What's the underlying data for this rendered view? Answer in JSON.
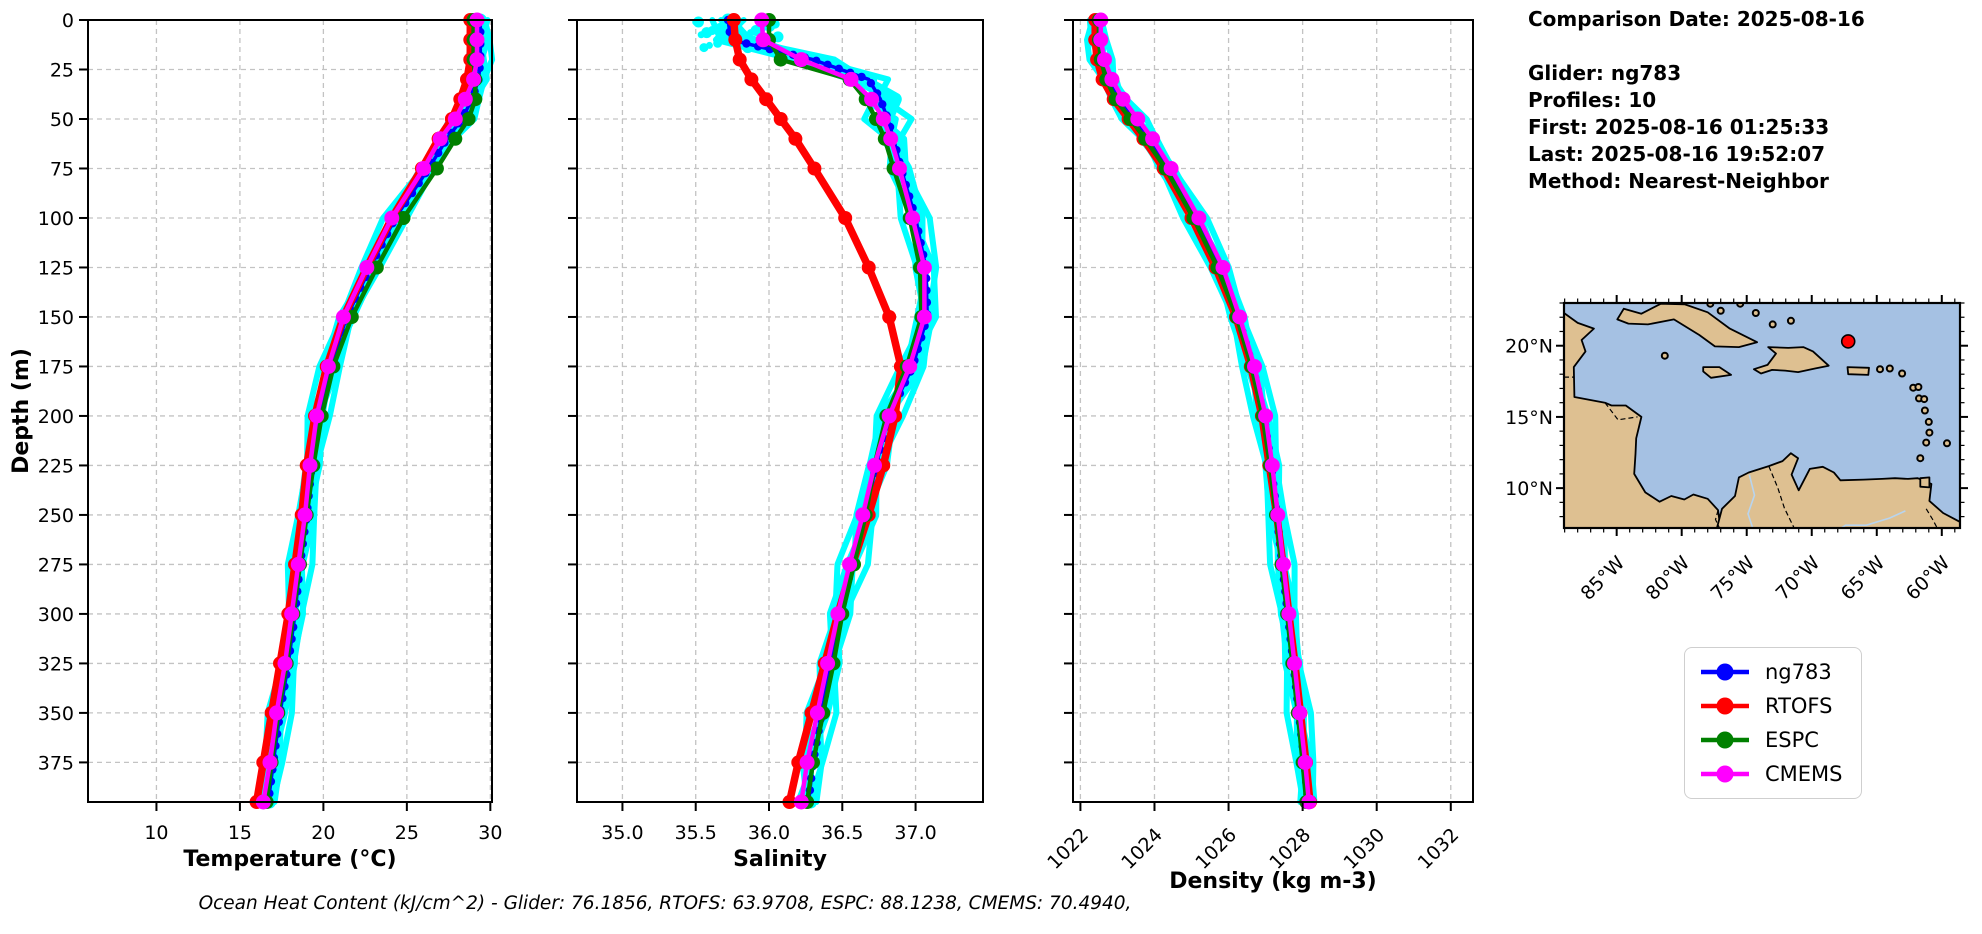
{
  "info": {
    "title": "Comparison Date: 2025-08-16",
    "lines": [
      "Glider: ng783",
      "Profiles: 10",
      "First: 2025-08-16 01:25:33",
      "Last: 2025-08-16 19:52:07",
      "Method: Nearest-Neighbor"
    ]
  },
  "footer": {
    "text": "Ocean Heat Content (kJ/cm^2) - Glider: 76.1856,  RTOFS: 63.9708,  ESPC: 88.1238,  CMEMS: 70.4940,",
    "values": {
      "Glider": 76.1856,
      "RTOFS": 63.9708,
      "ESPC": 88.1238,
      "CMEMS": 70.494
    }
  },
  "chart_data": {
    "type": "line",
    "ylabel": "Depth (m)",
    "ylim": [
      0,
      395
    ],
    "grid": true,
    "depth_ticks": [
      0,
      25,
      50,
      75,
      100,
      125,
      150,
      175,
      200,
      225,
      250,
      275,
      300,
      325,
      350,
      375
    ],
    "depths": [
      0,
      10,
      20,
      30,
      40,
      50,
      60,
      75,
      100,
      125,
      150,
      175,
      200,
      225,
      250,
      275,
      300,
      325,
      350,
      375,
      395
    ],
    "legend": [
      "ng783",
      "RTOFS",
      "ESPC",
      "CMEMS"
    ],
    "legend_position": "lower-right",
    "colors": {
      "ng783": "#0000ff",
      "RTOFS": "#ff0000",
      "ESPC": "#008000",
      "CMEMS": "#ff00ff",
      "envelope": "#00ffff"
    },
    "subplots": [
      {
        "id": "temperature",
        "xlabel": "Temperature (°C)",
        "xlim": [
          5.9,
          30.1
        ],
        "xticks": [
          10,
          15,
          20,
          25,
          30
        ],
        "xtick_labels": [
          "10",
          "15",
          "20",
          "25",
          "30"
        ],
        "rotate_xticks": 0,
        "series": {
          "ng783": [
            29.4,
            29.4,
            29.4,
            29.3,
            28.9,
            28.3,
            27.4,
            26.3,
            24.3,
            22.8,
            21.4,
            20.4,
            19.7,
            19.3,
            19.0,
            18.6,
            18.3,
            17.9,
            17.4,
            17.0,
            16.7
          ],
          "RTOFS": [
            28.8,
            28.8,
            28.8,
            28.6,
            28.2,
            27.7,
            26.9,
            25.9,
            24.1,
            22.6,
            21.2,
            20.2,
            19.5,
            19.0,
            18.7,
            18.3,
            17.9,
            17.4,
            16.9,
            16.4,
            16.0
          ],
          "ESPC": [
            29.0,
            29.0,
            29.0,
            29.1,
            29.1,
            28.7,
            27.9,
            26.8,
            24.8,
            23.2,
            21.7,
            20.6,
            19.9,
            19.4,
            19.0,
            18.6,
            18.2,
            17.8,
            17.3,
            16.9,
            16.6
          ],
          "CMEMS": [
            29.2,
            29.2,
            29.2,
            29.0,
            28.5,
            27.9,
            27.0,
            26.0,
            24.1,
            22.6,
            21.2,
            20.3,
            19.6,
            19.2,
            18.9,
            18.5,
            18.1,
            17.7,
            17.2,
            16.8,
            16.4
          ]
        }
      },
      {
        "id": "salinity",
        "xlabel": "Salinity",
        "xlim": [
          34.69,
          37.46
        ],
        "xticks": [
          35.0,
          35.5,
          36.0,
          36.5,
          37.0
        ],
        "xtick_labels": [
          "35.0",
          "35.5",
          "36.0",
          "36.5",
          "37.0"
        ],
        "rotate_xticks": 0,
        "series": {
          "ng783": [
            35.72,
            35.74,
            36.3,
            36.68,
            36.76,
            36.81,
            36.85,
            36.9,
            37.0,
            37.07,
            37.08,
            36.98,
            36.82,
            36.73,
            36.66,
            36.57,
            36.48,
            36.42,
            36.36,
            36.3,
            36.27
          ],
          "RTOFS": [
            35.76,
            35.77,
            35.8,
            35.88,
            35.98,
            36.08,
            36.18,
            36.31,
            36.52,
            36.68,
            36.82,
            36.9,
            36.86,
            36.78,
            36.68,
            36.57,
            36.47,
            36.38,
            36.29,
            36.2,
            36.14
          ],
          "ESPC": [
            36.0,
            36.0,
            36.08,
            36.55,
            36.66,
            36.73,
            36.79,
            36.85,
            36.96,
            37.03,
            37.04,
            36.94,
            36.8,
            36.72,
            36.66,
            36.58,
            36.5,
            36.44,
            36.37,
            36.3,
            36.26
          ],
          "CMEMS": [
            35.95,
            35.96,
            36.22,
            36.56,
            36.7,
            36.78,
            36.83,
            36.89,
            36.98,
            37.06,
            37.06,
            36.96,
            36.82,
            36.72,
            36.64,
            36.55,
            36.47,
            36.4,
            36.33,
            36.26,
            36.22
          ]
        }
      },
      {
        "id": "density",
        "xlabel": "Density (kg m-3)",
        "xlim": [
          1021.8,
          1032.6
        ],
        "xticks": [
          1022,
          1024,
          1026,
          1028,
          1030,
          1032
        ],
        "xtick_labels": [
          "1022",
          "1024",
          "1026",
          "1028",
          "1030",
          "1032"
        ],
        "rotate_xticks": 45,
        "series": {
          "ng783": [
            1022.45,
            1022.45,
            1022.55,
            1022.75,
            1023.05,
            1023.45,
            1023.85,
            1024.35,
            1025.1,
            1025.75,
            1026.25,
            1026.65,
            1026.95,
            1027.15,
            1027.3,
            1027.45,
            1027.6,
            1027.75,
            1027.9,
            1028.05,
            1028.15
          ],
          "RTOFS": [
            1022.4,
            1022.4,
            1022.45,
            1022.6,
            1022.9,
            1023.3,
            1023.7,
            1024.25,
            1025.0,
            1025.65,
            1026.2,
            1026.6,
            1026.9,
            1027.1,
            1027.3,
            1027.47,
            1027.63,
            1027.79,
            1027.94,
            1028.09,
            1028.2
          ],
          "ESPC": [
            1022.5,
            1022.5,
            1022.55,
            1022.7,
            1022.95,
            1023.35,
            1023.75,
            1024.3,
            1025.05,
            1025.7,
            1026.22,
            1026.62,
            1026.92,
            1027.12,
            1027.28,
            1027.43,
            1027.58,
            1027.72,
            1027.87,
            1028.0,
            1028.1
          ],
          "CMEMS": [
            1022.55,
            1022.55,
            1022.65,
            1022.85,
            1023.15,
            1023.55,
            1023.95,
            1024.45,
            1025.2,
            1025.85,
            1026.3,
            1026.7,
            1027.0,
            1027.18,
            1027.33,
            1027.48,
            1027.63,
            1027.78,
            1027.92,
            1028.07,
            1028.17
          ]
        }
      }
    ]
  },
  "map": {
    "region": "Caribbean",
    "lat_ticks": [
      20,
      15,
      10
    ],
    "lat_tick_labels": [
      "20°N",
      "15°N",
      "10°N"
    ],
    "lon_ticks": [
      -85,
      -80,
      -75,
      -70,
      -65,
      -60
    ],
    "lon_tick_labels": [
      "85°W",
      "80°W",
      "75°W",
      "70°W",
      "65°W",
      "60°W"
    ],
    "lat_range": [
      7.2,
      23.0
    ],
    "lon_range": [
      -89.05,
      -58.6
    ],
    "marker": {
      "lat": 20.3,
      "lon": -67.2,
      "color": "#ff0000"
    },
    "ocean_color": "#a5c1e3",
    "land_color": "#dec091",
    "river_color": "#b8d4ee"
  }
}
